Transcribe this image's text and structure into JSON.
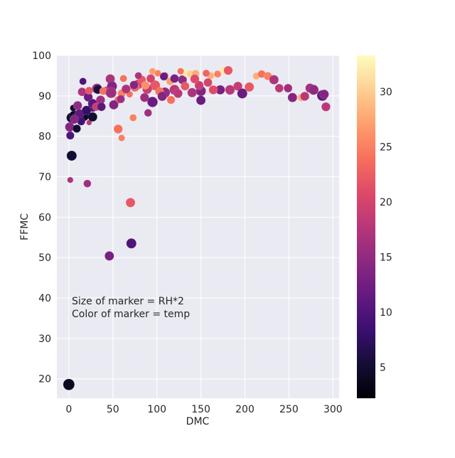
{
  "chart_data": {
    "type": "scatter",
    "xlabel": "DMC",
    "ylabel": "FFMC",
    "xlim": [
      -13.6,
      307
    ],
    "ylim": [
      15.2,
      100
    ],
    "xticks": [
      0,
      50,
      100,
      150,
      200,
      250,
      300
    ],
    "yticks": [
      20,
      30,
      40,
      50,
      60,
      70,
      80,
      90,
      100
    ],
    "grid": true,
    "annotation": [
      "Size of marker = RH*2",
      "Color of marker = temp"
    ],
    "size_encoding": "RH*2",
    "color_encoding": "temp",
    "colormap": "magma",
    "colorbar": {
      "range": [
        2.2,
        33.3
      ],
      "ticks": [
        5,
        10,
        15,
        20,
        25,
        30
      ]
    },
    "point_fields": [
      "DMC",
      "FFMC",
      "RH",
      "temp"
    ],
    "points": [
      [
        0,
        18.6,
        90,
        4
      ],
      [
        3.2,
        75.2,
        70,
        5
      ],
      [
        1.6,
        69.2,
        25,
        17
      ],
      [
        21,
        68.3,
        40,
        16
      ],
      [
        46,
        50.4,
        60,
        13
      ],
      [
        71,
        53.5,
        70,
        10
      ],
      [
        70,
        63.6,
        60,
        22
      ],
      [
        56,
        81.8,
        55,
        24
      ],
      [
        60,
        79.6,
        30,
        25
      ],
      [
        73,
        84.6,
        35,
        25
      ],
      [
        1.6,
        80.2,
        45,
        10
      ],
      [
        3,
        84.6,
        70,
        5
      ],
      [
        6,
        85.2,
        60,
        4
      ],
      [
        8,
        84.7,
        55,
        6
      ],
      [
        5,
        87,
        30,
        5
      ],
      [
        1,
        82.3,
        60,
        14
      ],
      [
        9,
        81.9,
        45,
        5
      ],
      [
        23,
        83.4,
        20,
        18
      ],
      [
        17,
        85,
        70,
        4
      ],
      [
        27,
        84.8,
        60,
        5
      ],
      [
        27,
        87.2,
        60,
        10
      ],
      [
        36,
        89,
        55,
        16
      ],
      [
        16,
        93.6,
        35,
        10
      ],
      [
        15,
        91,
        50,
        17
      ],
      [
        32,
        91.8,
        70,
        15
      ],
      [
        33,
        91.6,
        55,
        6
      ],
      [
        47,
        94.2,
        60,
        17
      ],
      [
        62,
        94.3,
        35,
        24
      ],
      [
        56,
        89,
        40,
        24
      ],
      [
        51,
        87.8,
        60,
        14
      ],
      [
        60,
        90.6,
        45,
        25
      ],
      [
        69,
        90.4,
        30,
        24
      ],
      [
        79,
        92.9,
        65,
        20
      ],
      [
        86,
        89.6,
        55,
        16
      ],
      [
        95,
        88.5,
        75,
        12
      ],
      [
        90,
        85.8,
        40,
        16
      ],
      [
        101,
        95.6,
        30,
        25
      ],
      [
        109,
        95,
        35,
        20
      ],
      [
        115,
        93.6,
        40,
        27
      ],
      [
        120,
        91.5,
        70,
        18
      ],
      [
        129,
        94,
        55,
        15
      ],
      [
        133,
        95.6,
        35,
        32
      ],
      [
        138,
        95.4,
        35,
        30
      ],
      [
        144,
        95.5,
        40,
        28
      ],
      [
        150,
        91.2,
        70,
        14
      ],
      [
        150,
        88.9,
        60,
        12
      ],
      [
        132,
        92.4,
        50,
        22
      ],
      [
        161,
        95,
        35,
        28
      ],
      [
        169,
        95.4,
        35,
        25
      ],
      [
        176,
        96.3,
        45,
        32
      ],
      [
        181,
        96.3,
        55,
        22
      ],
      [
        172,
        91.5,
        60,
        13
      ],
      [
        183,
        91.5,
        65,
        18
      ],
      [
        192,
        92.4,
        55,
        19
      ],
      [
        197,
        90.6,
        70,
        12
      ],
      [
        205,
        92.2,
        60,
        22
      ],
      [
        213,
        94.9,
        35,
        28
      ],
      [
        219,
        95.4,
        40,
        24
      ],
      [
        226,
        94.9,
        45,
        25
      ],
      [
        233,
        94,
        60,
        17
      ],
      [
        239,
        91.9,
        50,
        18
      ],
      [
        249,
        91.9,
        50,
        16
      ],
      [
        254,
        89.6,
        60,
        14
      ],
      [
        264,
        89.6,
        40,
        28
      ],
      [
        268,
        89.9,
        55,
        18
      ],
      [
        274,
        91.9,
        60,
        16
      ],
      [
        278,
        91.5,
        70,
        15
      ],
      [
        288,
        90.1,
        80,
        11
      ],
      [
        290,
        90.4,
        60,
        14
      ],
      [
        292,
        87.3,
        55,
        18
      ],
      [
        164,
        91.5,
        55,
        21
      ],
      [
        158,
        93.3,
        50,
        20
      ],
      [
        98,
        92.6,
        70,
        22
      ],
      [
        109,
        90.8,
        75,
        15
      ],
      [
        103,
        91.1,
        50,
        24
      ],
      [
        89,
        91.7,
        65,
        19
      ],
      [
        75,
        92.2,
        60,
        23
      ],
      [
        83,
        94,
        45,
        22
      ],
      [
        93,
        94.3,
        50,
        20
      ],
      [
        65,
        91.7,
        55,
        17
      ],
      [
        43,
        91.3,
        50,
        20
      ],
      [
        49,
        92.4,
        70,
        14
      ],
      [
        22,
        89.7,
        55,
        12
      ],
      [
        27,
        88.1,
        60,
        11
      ],
      [
        10,
        87.6,
        55,
        15
      ],
      [
        12,
        85.5,
        65,
        11
      ],
      [
        14,
        83.7,
        45,
        9
      ],
      [
        20,
        86.4,
        60,
        8
      ],
      [
        6,
        84.2,
        55,
        14
      ],
      [
        31,
        87.3,
        45,
        19
      ],
      [
        37,
        87.3,
        50,
        11
      ],
      [
        116,
        89,
        45,
        24
      ],
      [
        124,
        90.6,
        55,
        18
      ],
      [
        140,
        90.8,
        60,
        17
      ],
      [
        148,
        92.6,
        55,
        19
      ],
      [
        106,
        89.9,
        60,
        14
      ],
      [
        79,
        95,
        35,
        17
      ],
      [
        87,
        92.6,
        45,
        26
      ],
      [
        74,
        92.7,
        50,
        14
      ],
      [
        23,
        91.3,
        40,
        22
      ],
      [
        39,
        91.2,
        40,
        24
      ],
      [
        59,
        89.2,
        45,
        16
      ],
      [
        95,
        96.1,
        30,
        27
      ],
      [
        127,
        96.1,
        30,
        24
      ],
      [
        143,
        94.2,
        55,
        21
      ],
      [
        156,
        95.6,
        35,
        23
      ],
      [
        120,
        94.3,
        50,
        13
      ],
      [
        108,
        94.8,
        45,
        12
      ],
      [
        48,
        90.8,
        80,
        16
      ]
    ]
  }
}
